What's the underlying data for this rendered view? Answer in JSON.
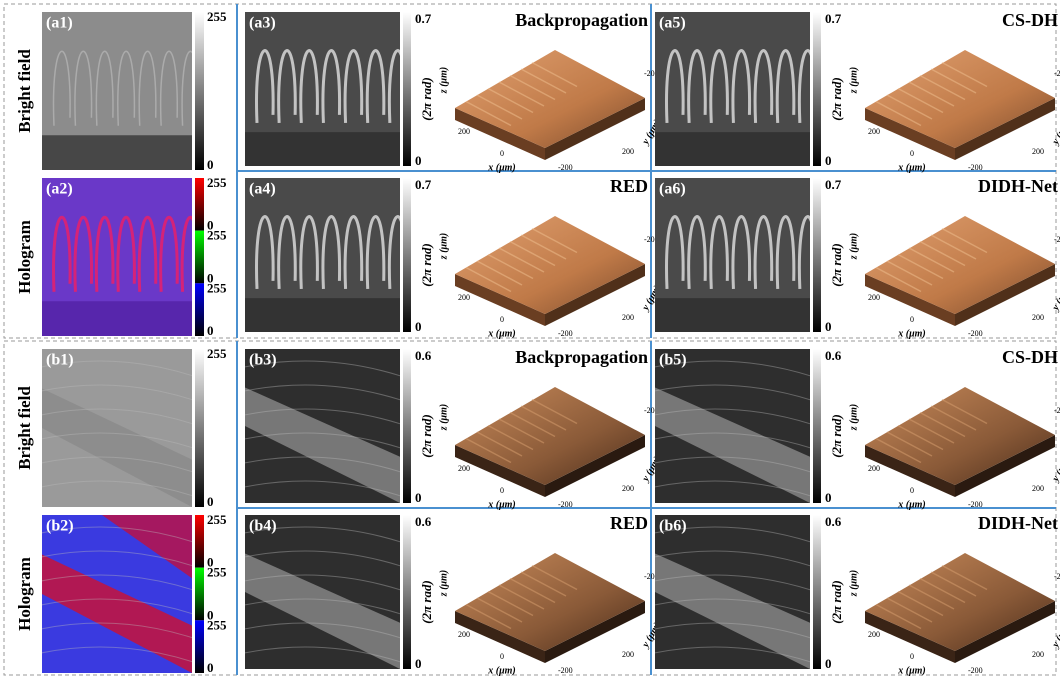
{
  "sections": [
    {
      "rows": [
        {
          "row_label": "Bright field",
          "panel_label": "(a1)",
          "colorbar_labels": [
            "255",
            "0"
          ]
        },
        {
          "row_label": "Hologram",
          "panel_label": "(a2)",
          "colorbar_labels": [
            "255",
            "0",
            "255",
            "0",
            "255",
            "0"
          ]
        }
      ],
      "results": [
        {
          "panel_label": "(a3)",
          "method": "Backpropagation",
          "cbar_max": "0.7",
          "cbar_min": "0",
          "cbar_unit": "(2π rad)"
        },
        {
          "panel_label": "(a4)",
          "method": "RED",
          "cbar_max": "0.7",
          "cbar_min": "0",
          "cbar_unit": "(2π rad)"
        },
        {
          "panel_label": "(a5)",
          "method": "CS-DH",
          "cbar_max": "0.7",
          "cbar_min": "0",
          "cbar_unit": "(2π rad)"
        },
        {
          "panel_label": "(a6)",
          "method": "DIDH-Net",
          "cbar_max": "0.7",
          "cbar_min": "0",
          "cbar_unit": "(2π rad)"
        }
      ]
    },
    {
      "rows": [
        {
          "row_label": "Bright field",
          "panel_label": "(b1)",
          "colorbar_labels": [
            "255",
            "0"
          ]
        },
        {
          "row_label": "Hologram",
          "panel_label": "(b2)",
          "colorbar_labels": [
            "255",
            "0",
            "255",
            "0",
            "255",
            "0"
          ]
        }
      ],
      "results": [
        {
          "panel_label": "(b3)",
          "method": "Backpropagation",
          "cbar_max": "0.6",
          "cbar_min": "0",
          "cbar_unit": "(2π rad)"
        },
        {
          "panel_label": "(b4)",
          "method": "RED",
          "cbar_max": "0.6",
          "cbar_min": "0",
          "cbar_unit": "(2π rad)"
        },
        {
          "panel_label": "(b5)",
          "method": "CS-DH",
          "cbar_max": "0.6",
          "cbar_min": "0",
          "cbar_unit": "(2π rad)"
        },
        {
          "panel_label": "(b6)",
          "method": "DIDH-Net",
          "cbar_max": "0.6",
          "cbar_min": "0",
          "cbar_unit": "(2π rad)"
        }
      ]
    }
  ],
  "surface_axes": {
    "x_label": "x (μm)",
    "y_label": "y (μm)",
    "z_label": "z (μm)",
    "tick_pos": "200",
    "tick_zero": "0",
    "tick_neg": "-200"
  }
}
